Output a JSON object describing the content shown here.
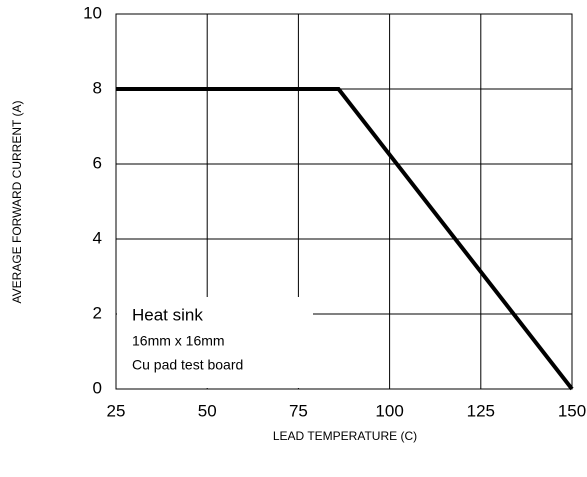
{
  "chart_data": {
    "type": "line",
    "x_label": "LEAD TEMPERATURE (C)",
    "y_label": "AVERAGE FORWARD CURRENT (A)",
    "x": [
      25,
      86,
      150
    ],
    "values": [
      8,
      8,
      0
    ],
    "color": "#000000",
    "xlim": [
      25,
      150
    ],
    "xticks": [
      25,
      50,
      75,
      100,
      125,
      150
    ],
    "ylim": [
      0,
      10
    ],
    "yticks": [
      0,
      2,
      4,
      6,
      8,
      10
    ],
    "grid": true,
    "annotations": [
      "Heat sink",
      "16mm x 16mm",
      "Cu pad test board"
    ]
  }
}
